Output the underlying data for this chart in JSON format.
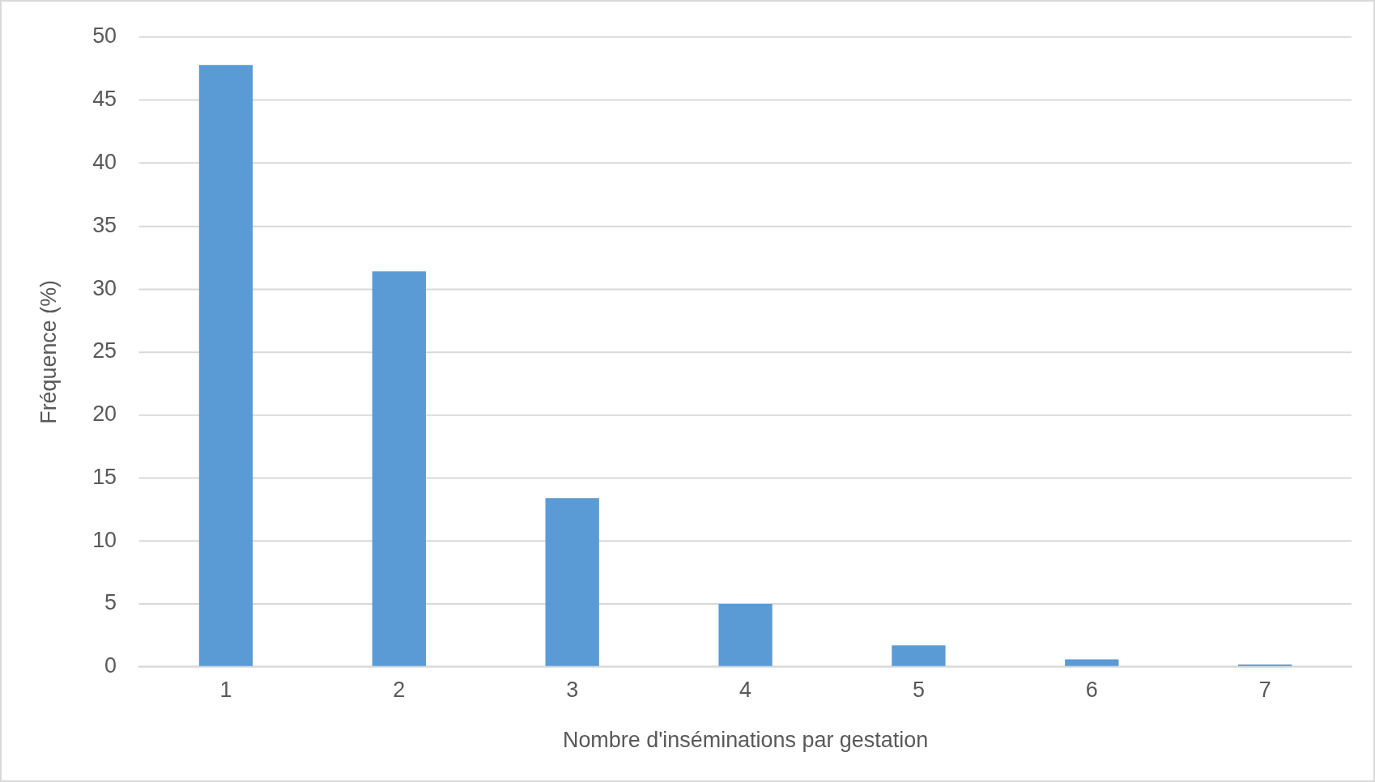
{
  "chart_data": {
    "type": "bar",
    "xlabel": "Nombre d'inséminations par gestation",
    "ylabel": "Fréquence (%)",
    "categories": [
      "1",
      "2",
      "3",
      "4",
      "5",
      "6",
      "7"
    ],
    "values": [
      47.8,
      31.4,
      13.4,
      5.0,
      1.7,
      0.6,
      0.2
    ],
    "color": "#5b9bd5",
    "ylim": [
      0,
      50
    ],
    "yticks": [
      0,
      5,
      10,
      15,
      20,
      25,
      30,
      35,
      40,
      45,
      50
    ],
    "grid": "y",
    "legend": false
  }
}
